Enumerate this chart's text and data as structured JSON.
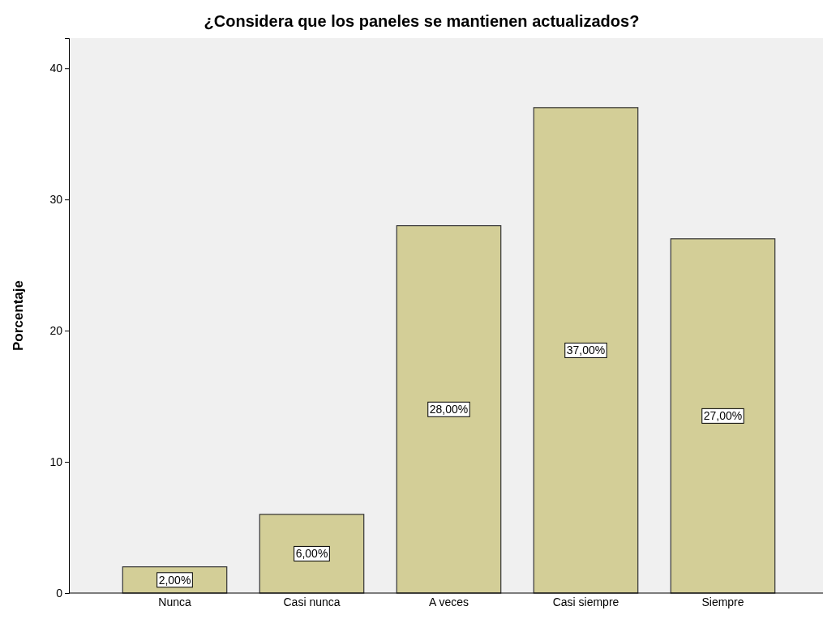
{
  "chart_data": {
    "type": "bar",
    "title": "¿Considera que los paneles se mantienen actualizados?",
    "ylabel": "Porcentaje",
    "categories": [
      "Nunca",
      "Casi nunca",
      "A veces",
      "Casi siempre",
      "Siempre"
    ],
    "values": [
      2,
      6,
      28,
      37,
      27
    ],
    "color": "#d3ce97",
    "value_labels": [
      "2,00%",
      "6,00%",
      "28,00%",
      "37,00%",
      "27,00%"
    ],
    "ylim": [
      0,
      42.3
    ],
    "yticks": [
      0,
      10,
      20,
      30,
      40
    ],
    "grid": false
  }
}
